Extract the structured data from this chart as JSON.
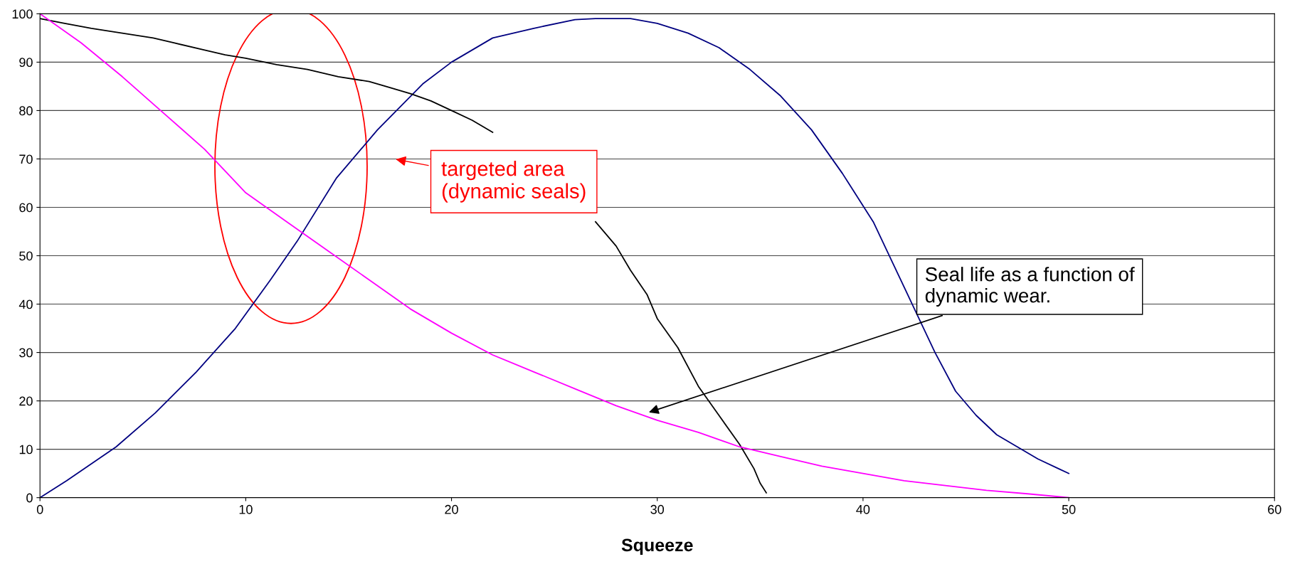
{
  "chart_data": {
    "type": "line",
    "xlabel": "Squeeze",
    "xlim": [
      0,
      60
    ],
    "xticks": [
      0,
      10,
      20,
      30,
      40,
      50,
      60
    ],
    "ylim": [
      0,
      100
    ],
    "yticks": [
      0,
      10,
      20,
      30,
      40,
      50,
      60,
      70,
      80,
      90,
      100
    ],
    "grid": "y",
    "legend": false,
    "marker": "none",
    "line_style": "solid",
    "series": [
      {
        "color": "#000080",
        "x": [
          0,
          1.3,
          3.7,
          5.6,
          7.6,
          9.5,
          11.2,
          12.5,
          14.4,
          16.4,
          18.6,
          20,
          22,
          24,
          26,
          27,
          28.7,
          30,
          31.5,
          33,
          34.5,
          36,
          37.5,
          39,
          40.5,
          41.5,
          42.5,
          43.5,
          44.5,
          45.5,
          46.5,
          47.5,
          48.5,
          49.5,
          50
        ],
        "values": [
          0,
          3.5,
          10.5,
          17.5,
          26,
          35,
          45,
          53,
          66,
          76,
          85.5,
          90,
          95,
          97,
          98.8,
          99,
          99,
          98,
          96,
          93,
          88.5,
          83,
          76,
          67,
          57,
          48,
          39,
          30,
          22,
          17,
          13,
          10.5,
          8,
          6,
          5
        ]
      },
      {
        "color": "#000000",
        "x": [
          0,
          1.2,
          2.5,
          4,
          5.5,
          6.5,
          8,
          9,
          10,
          11.5,
          13,
          14.5,
          16,
          16.8,
          18,
          19,
          20,
          21,
          22,
          23,
          24,
          25,
          26,
          27,
          28,
          28.7,
          29.5,
          30,
          31,
          32,
          33,
          34,
          34.7,
          35,
          35.3
        ],
        "values": [
          99,
          98,
          97,
          96,
          95,
          94,
          92.5,
          91.5,
          90.8,
          89.5,
          88.5,
          87,
          86,
          85,
          83.5,
          82,
          80,
          78,
          75.5,
          null,
          null,
          null,
          null,
          57,
          52,
          47,
          42,
          37,
          31,
          23,
          17,
          11,
          6,
          3,
          1
        ]
      },
      {
        "color": "#ff00ff",
        "x": [
          0,
          2,
          4,
          6,
          8,
          10,
          12,
          14,
          16,
          18,
          20,
          22,
          24,
          26,
          28,
          30,
          32,
          34,
          36,
          38,
          40,
          42,
          44,
          46,
          48,
          50
        ],
        "values": [
          100,
          94,
          87,
          79.5,
          72,
          63,
          57,
          51,
          45,
          39,
          34,
          29.5,
          26,
          22.5,
          19,
          16,
          13.5,
          10.5,
          8.5,
          6.5,
          5,
          3.5,
          2.5,
          1.5,
          0.8,
          0
        ]
      }
    ],
    "annotations": [
      "targeted area\n(dynamic seals)",
      {
        "text": "Seal life as a function of\ndynamic wear.",
        "x": 29.5,
        "y": 17.5
      }
    ]
  }
}
